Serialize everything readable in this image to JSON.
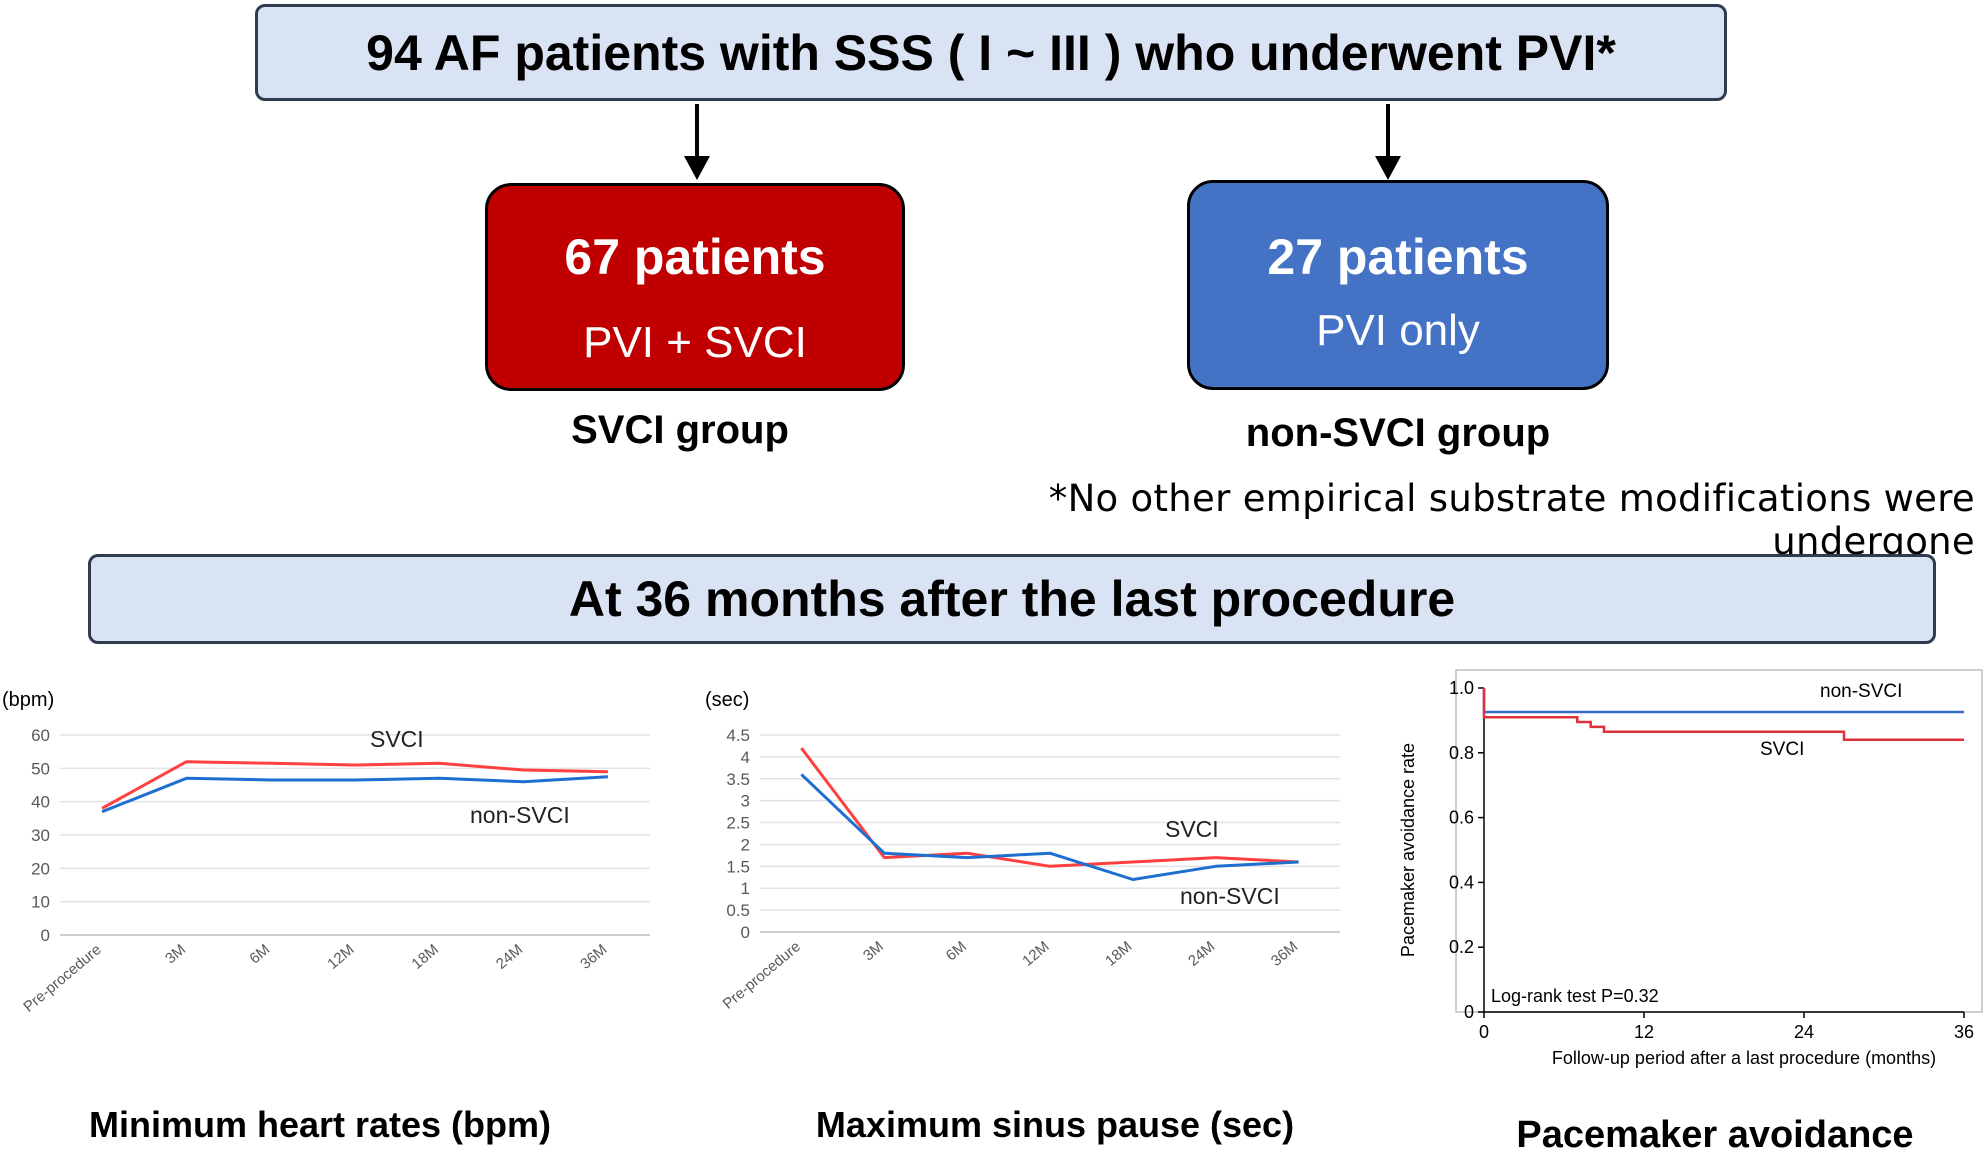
{
  "top_banner": {
    "text": "94 AF patients with SSS ( I ~ III ) who underwent PVI*"
  },
  "groups": [
    {
      "count": "67 patients",
      "procedure": "PVI + SVCI",
      "label": "SVCI group",
      "color": "#c00000"
    },
    {
      "count": "27 patients",
      "procedure": "PVI only",
      "label": "non-SVCI group",
      "color": "#4472c4"
    }
  ],
  "footnote": "*No other empirical substrate modifications were undergone",
  "middle_banner": {
    "text": "At 36 months after the last procedure"
  },
  "colors": {
    "svci": "#ff4040",
    "non_svci": "#1f6fd1",
    "km_svci": "#e0303a",
    "km_non_svci": "#3a6bc8"
  },
  "chart_data": [
    {
      "type": "line",
      "ylabel": "(bpm)",
      "ylim": [
        0,
        60
      ],
      "yticks": [
        0,
        10,
        20,
        30,
        40,
        50,
        60
      ],
      "categories": [
        "Pre-procedure",
        "3M",
        "6M",
        "12M",
        "18M",
        "24M",
        "36M"
      ],
      "series": [
        {
          "name": "SVCI",
          "values": [
            38,
            52,
            51.5,
            51,
            51.5,
            49.5,
            49
          ]
        },
        {
          "name": "non-SVCI",
          "values": [
            37,
            47,
            46.5,
            46.5,
            47,
            46,
            47.5
          ]
        }
      ],
      "caption": "Minimum heart rates (bpm)"
    },
    {
      "type": "line",
      "ylabel": "(sec)",
      "ylim": [
        0,
        4.5
      ],
      "yticks": [
        0,
        0.5,
        1,
        1.5,
        2,
        2.5,
        3,
        3.5,
        4,
        4.5
      ],
      "categories": [
        "Pre-procedure",
        "3M",
        "6M",
        "12M",
        "18M",
        "24M",
        "36M"
      ],
      "series": [
        {
          "name": "SVCI",
          "values": [
            4.2,
            1.7,
            1.8,
            1.5,
            1.6,
            1.7,
            1.6
          ]
        },
        {
          "name": "non-SVCI",
          "values": [
            3.6,
            1.8,
            1.7,
            1.8,
            1.2,
            1.5,
            1.6
          ]
        }
      ],
      "caption": "Maximum sinus pause (sec)"
    },
    {
      "type": "line",
      "ylabel": "Pacemaker  avoidance rate",
      "xlabel": "Follow-up period after a last procedure (months)",
      "ylim": [
        0,
        1.0
      ],
      "xlim": [
        0,
        36
      ],
      "yticks": [
        0,
        0.2,
        0.4,
        0.6,
        0.8,
        1.0
      ],
      "xticks": [
        0,
        12,
        24,
        36
      ],
      "series": [
        {
          "name": "non-SVCI",
          "steps": [
            [
              0,
              1.0
            ],
            [
              0,
              0.926
            ],
            [
              36,
              0.926
            ]
          ]
        },
        {
          "name": "SVCI",
          "steps": [
            [
              0,
              1.0
            ],
            [
              0,
              0.91
            ],
            [
              7,
              0.91
            ],
            [
              7,
              0.895
            ],
            [
              8,
              0.895
            ],
            [
              8,
              0.88
            ],
            [
              9,
              0.88
            ],
            [
              9,
              0.865
            ],
            [
              27,
              0.865
            ],
            [
              27,
              0.84
            ],
            [
              36,
              0.84
            ]
          ]
        }
      ],
      "annotation": "Log-rank test  P=0.32",
      "caption": "Pacemaker avoidance"
    }
  ]
}
